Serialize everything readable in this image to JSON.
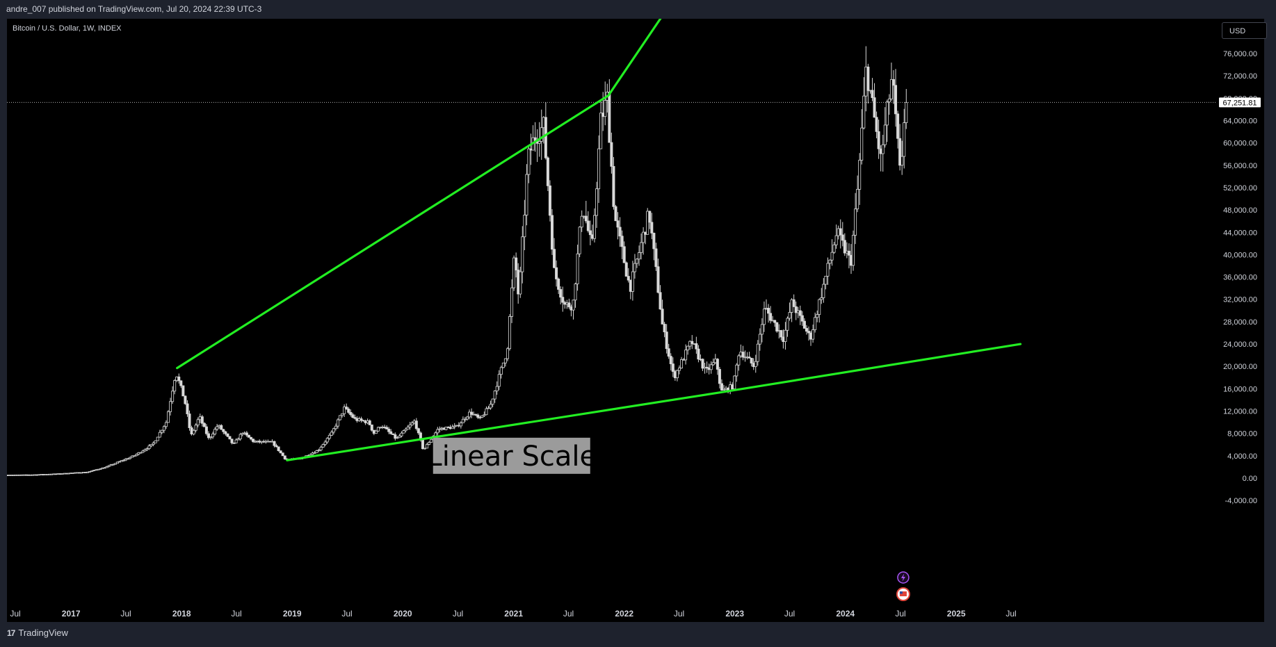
{
  "header": {
    "publish_line": "andre_007 published on TradingView.com, Jul 20, 2024 22:39 UTC-3"
  },
  "chart_header": {
    "symbol_title": "Bitcoin / U.S. Dollar, 1W, INDEX",
    "currency": "USD"
  },
  "footer": {
    "brand": "TradingView",
    "brand_mark": "17"
  },
  "colors": {
    "trendline": "#22ee22",
    "candle": "#d9d9d9",
    "background": "#000000",
    "frame": "#1e222d"
  },
  "chart_data": {
    "type": "candlestick",
    "y_axis": {
      "min": -4000,
      "max": 76000,
      "step": 4000,
      "position": "right",
      "tick_labels": [
        "76,000.00",
        "72,000.00",
        "68,000.00",
        "64,000.00",
        "60,000.00",
        "56,000.00",
        "52,000.00",
        "48,000.00",
        "44,000.00",
        "40,000.00",
        "36,000.00",
        "32,000.00",
        "28,000.00",
        "24,000.00",
        "20,000.00",
        "16,000.00",
        "12,000.00",
        "8,000.00",
        "4,000.00",
        "0.00",
        "-4,000.00"
      ]
    },
    "x_axis": {
      "tick_labels": [
        {
          "label": "Jul",
          "date": "2016-07-01",
          "year": false
        },
        {
          "label": "2017",
          "date": "2017-01-01",
          "year": true
        },
        {
          "label": "Jul",
          "date": "2017-07-01",
          "year": false
        },
        {
          "label": "2018",
          "date": "2018-01-01",
          "year": true
        },
        {
          "label": "Jul",
          "date": "2018-07-01",
          "year": false
        },
        {
          "label": "2019",
          "date": "2019-01-01",
          "year": true
        },
        {
          "label": "Jul",
          "date": "2019-07-01",
          "year": false
        },
        {
          "label": "2020",
          "date": "2020-01-01",
          "year": true
        },
        {
          "label": "Jul",
          "date": "2020-07-01",
          "year": false
        },
        {
          "label": "2021",
          "date": "2021-01-01",
          "year": true
        },
        {
          "label": "Jul",
          "date": "2021-07-01",
          "year": false
        },
        {
          "label": "2022",
          "date": "2022-01-01",
          "year": true
        },
        {
          "label": "Jul",
          "date": "2022-07-01",
          "year": false
        },
        {
          "label": "2023",
          "date": "2023-01-01",
          "year": true
        },
        {
          "label": "Jul",
          "date": "2023-07-01",
          "year": false
        },
        {
          "label": "2024",
          "date": "2024-01-01",
          "year": true
        },
        {
          "label": "Jul",
          "date": "2024-07-01",
          "year": false
        },
        {
          "label": "2025",
          "date": "2025-01-01",
          "year": true
        },
        {
          "label": "Jul",
          "date": "2025-07-01",
          "year": false
        }
      ]
    },
    "last_price": {
      "value": 67251.81,
      "label": "67,251.81"
    },
    "price_path": [
      [
        "2016-06-01",
        550
      ],
      [
        "2016-09-01",
        600
      ],
      [
        "2016-12-01",
        800
      ],
      [
        "2017-03-01",
        1100
      ],
      [
        "2017-05-01",
        2000
      ],
      [
        "2017-08-01",
        4000
      ],
      [
        "2017-10-01",
        6000
      ],
      [
        "2017-11-15",
        10000
      ],
      [
        "2017-12-17",
        19000
      ],
      [
        "2018-01-15",
        14000
      ],
      [
        "2018-02-05",
        7500
      ],
      [
        "2018-03-05",
        11000
      ],
      [
        "2018-04-05",
        7000
      ],
      [
        "2018-05-05",
        9500
      ],
      [
        "2018-06-25",
        6000
      ],
      [
        "2018-07-25",
        8200
      ],
      [
        "2018-09-01",
        6500
      ],
      [
        "2018-11-01",
        6400
      ],
      [
        "2018-12-15",
        3300
      ],
      [
        "2019-02-01",
        3500
      ],
      [
        "2019-04-01",
        5000
      ],
      [
        "2019-05-15",
        8000
      ],
      [
        "2019-06-26",
        12500
      ],
      [
        "2019-08-01",
        10500
      ],
      [
        "2019-09-15",
        10000
      ],
      [
        "2019-10-01",
        8000
      ],
      [
        "2019-10-26",
        9500
      ],
      [
        "2019-12-15",
        7000
      ],
      [
        "2020-02-13",
        10200
      ],
      [
        "2020-03-13",
        5000
      ],
      [
        "2020-05-01",
        8800
      ],
      [
        "2020-07-01",
        9200
      ],
      [
        "2020-08-15",
        11800
      ],
      [
        "2020-09-15",
        10500
      ],
      [
        "2020-10-20",
        13000
      ],
      [
        "2020-11-20",
        18500
      ],
      [
        "2020-12-15",
        23000
      ],
      [
        "2021-01-08",
        40000
      ],
      [
        "2021-01-22",
        32000
      ],
      [
        "2021-02-21",
        57000
      ],
      [
        "2021-03-14",
        61000
      ],
      [
        "2021-04-14",
        63000
      ],
      [
        "2021-05-19",
        37000
      ],
      [
        "2021-06-22",
        31000
      ],
      [
        "2021-07-20",
        31000
      ],
      [
        "2021-08-20",
        49000
      ],
      [
        "2021-09-21",
        41000
      ],
      [
        "2021-10-20",
        64000
      ],
      [
        "2021-11-10",
        68000
      ],
      [
        "2021-12-04",
        47000
      ],
      [
        "2022-01-24",
        34000
      ],
      [
        "2022-03-28",
        47500
      ],
      [
        "2022-05-12",
        27000
      ],
      [
        "2022-06-18",
        18000
      ],
      [
        "2022-08-15",
        24500
      ],
      [
        "2022-10-01",
        19000
      ],
      [
        "2022-11-05",
        21000
      ],
      [
        "2022-11-21",
        15500
      ],
      [
        "2022-12-31",
        16500
      ],
      [
        "2023-01-20",
        23000
      ],
      [
        "2023-03-10",
        20000
      ],
      [
        "2023-04-14",
        30500
      ],
      [
        "2023-06-15",
        25000
      ],
      [
        "2023-07-13",
        31500
      ],
      [
        "2023-09-11",
        25000
      ],
      [
        "2023-10-25",
        34500
      ],
      [
        "2023-12-08",
        44000
      ],
      [
        "2024-01-23",
        38500
      ],
      [
        "2024-02-15",
        52000
      ],
      [
        "2024-03-14",
        73500
      ],
      [
        "2024-05-01",
        57000
      ],
      [
        "2024-06-07",
        72000
      ],
      [
        "2024-07-05",
        53500
      ],
      [
        "2024-07-20",
        67251
      ]
    ],
    "trendlines": [
      {
        "name": "upper",
        "points": [
          [
            "2017-12-17",
            19700
          ],
          [
            "2021-11-10",
            68500
          ],
          [
            "2022-05-10",
            83000
          ]
        ]
      },
      {
        "name": "lower",
        "points": [
          [
            "2018-12-15",
            3200
          ],
          [
            "2022-11-21",
            15400
          ],
          [
            "2025-08-01",
            24000
          ]
        ]
      }
    ],
    "annotations": [
      {
        "text": "Linear Scale",
        "date": "2021-01-15",
        "price": 4000
      }
    ]
  }
}
